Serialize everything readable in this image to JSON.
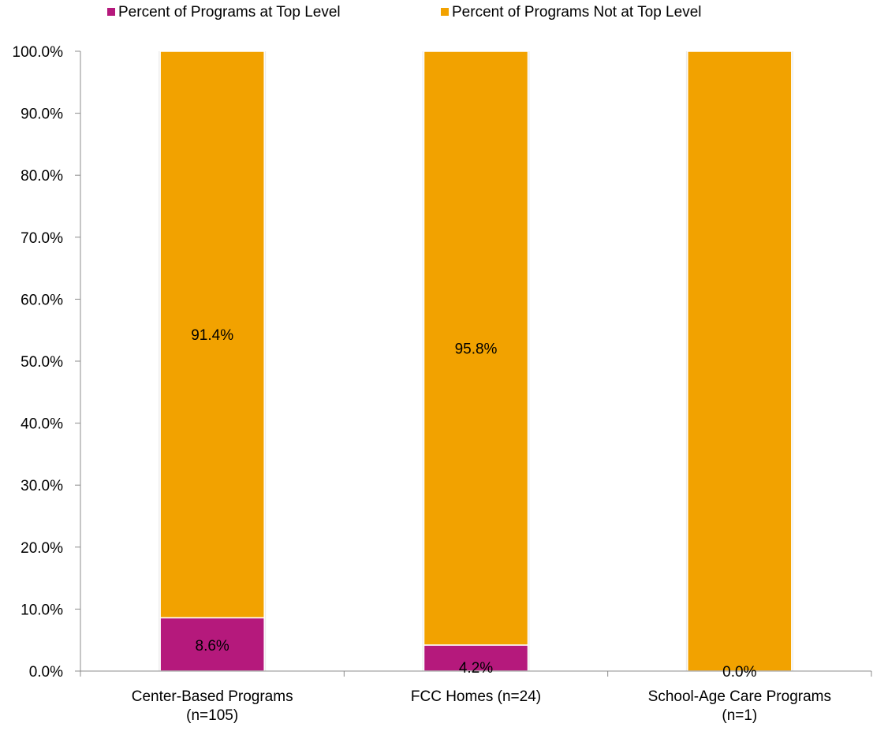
{
  "chart_data": {
    "type": "bar",
    "stacked": true,
    "categories": [
      [
        "Center-Based Programs",
        "(n=105)"
      ],
      [
        "FCC Homes (n=24)"
      ],
      [
        "School-Age Care Programs",
        "(n=1)"
      ]
    ],
    "series": [
      {
        "name": "Percent of Programs at Top Level",
        "color": "#B5197C",
        "values": [
          8.6,
          4.2,
          0.0
        ],
        "labels": [
          "8.6%",
          "4.2%",
          "0.0%"
        ]
      },
      {
        "name": "Percent of Programs Not at Top Level",
        "color": "#F2A200",
        "values": [
          91.4,
          95.8,
          100.0
        ],
        "labels": [
          "91.4%",
          "95.8%",
          ""
        ]
      }
    ],
    "yaxis": {
      "min": 0,
      "max": 100,
      "step": 10,
      "tick_labels": [
        "0.0%",
        "10.0%",
        "20.0%",
        "30.0%",
        "40.0%",
        "50.0%",
        "60.0%",
        "70.0%",
        "80.0%",
        "90.0%",
        "100.0%"
      ]
    },
    "grid": false,
    "legend_position": "top"
  }
}
